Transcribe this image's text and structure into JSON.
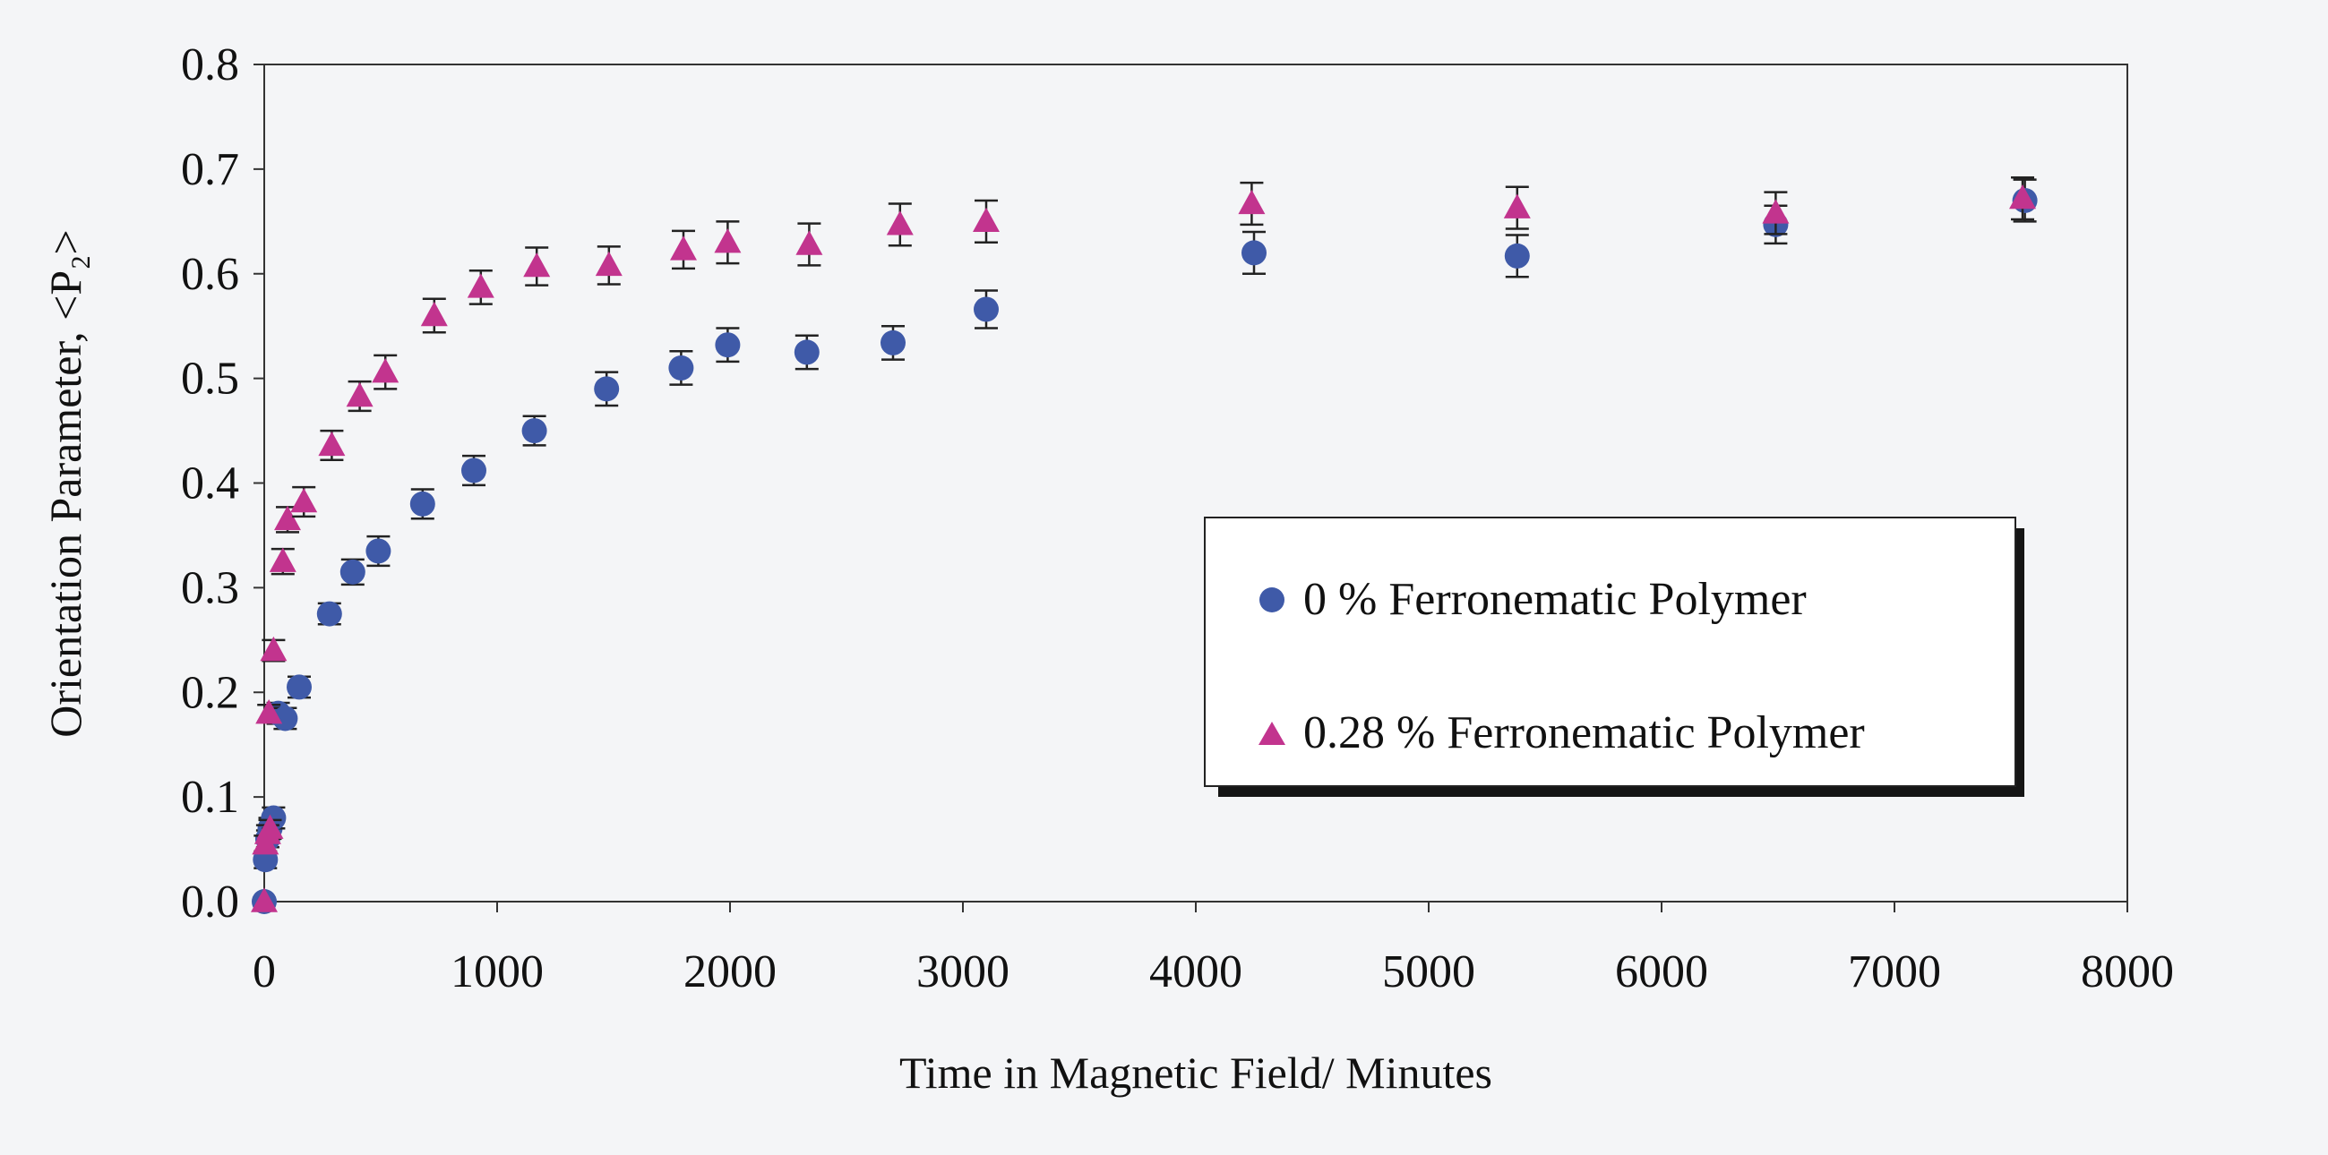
{
  "chart_data": {
    "type": "scatter",
    "title": "",
    "xlabel": "Time in Magnetic Field/ Minutes",
    "ylabel": "Orientation Parameter, <P₂>",
    "xlim": [
      0,
      8000
    ],
    "ylim": [
      0.0,
      0.8
    ],
    "x_ticks": [
      "0",
      "1000",
      "2000",
      "3000",
      "4000",
      "5000",
      "6000",
      "7000",
      "8000"
    ],
    "y_ticks": [
      "0.0",
      "0.1",
      "0.2",
      "0.3",
      "0.4",
      "0.5",
      "0.6",
      "0.7",
      "0.8"
    ],
    "grid": false,
    "error_bars": true,
    "legend_position": "right-center",
    "series": [
      {
        "name": "0 % Ferronematic Polymer",
        "marker": "circle",
        "color": "#3f5aa8",
        "points": [
          {
            "x": 0,
            "y": 0.0,
            "err": 0.0
          },
          {
            "x": 5,
            "y": 0.04,
            "err": 0.008
          },
          {
            "x": 15,
            "y": 0.06,
            "err": 0.008
          },
          {
            "x": 25,
            "y": 0.07,
            "err": 0.01
          },
          {
            "x": 40,
            "y": 0.08,
            "err": 0.01
          },
          {
            "x": 60,
            "y": 0.18,
            "err": 0.01
          },
          {
            "x": 90,
            "y": 0.175,
            "err": 0.01
          },
          {
            "x": 150,
            "y": 0.205,
            "err": 0.01
          },
          {
            "x": 280,
            "y": 0.275,
            "err": 0.01
          },
          {
            "x": 380,
            "y": 0.315,
            "err": 0.012
          },
          {
            "x": 490,
            "y": 0.335,
            "err": 0.014
          },
          {
            "x": 680,
            "y": 0.38,
            "err": 0.014
          },
          {
            "x": 900,
            "y": 0.412,
            "err": 0.014
          },
          {
            "x": 1160,
            "y": 0.45,
            "err": 0.014
          },
          {
            "x": 1470,
            "y": 0.49,
            "err": 0.016
          },
          {
            "x": 1790,
            "y": 0.51,
            "err": 0.016
          },
          {
            "x": 1990,
            "y": 0.532,
            "err": 0.016
          },
          {
            "x": 2330,
            "y": 0.525,
            "err": 0.016
          },
          {
            "x": 2700,
            "y": 0.534,
            "err": 0.016
          },
          {
            "x": 3100,
            "y": 0.566,
            "err": 0.018
          },
          {
            "x": 4250,
            "y": 0.62,
            "err": 0.02
          },
          {
            "x": 5380,
            "y": 0.617,
            "err": 0.02
          },
          {
            "x": 6490,
            "y": 0.647,
            "err": 0.018
          },
          {
            "x": 7560,
            "y": 0.67,
            "err": 0.02
          }
        ]
      },
      {
        "name": "0.28 % Ferronematic Polymer",
        "marker": "triangle",
        "color": "#c2348e",
        "points": [
          {
            "x": 0,
            "y": 0.0,
            "err": 0.0
          },
          {
            "x": 5,
            "y": 0.055,
            "err": 0.008
          },
          {
            "x": 15,
            "y": 0.065,
            "err": 0.008
          },
          {
            "x": 25,
            "y": 0.07,
            "err": 0.008
          },
          {
            "x": 20,
            "y": 0.18,
            "err": 0.008
          },
          {
            "x": 40,
            "y": 0.24,
            "err": 0.01
          },
          {
            "x": 80,
            "y": 0.325,
            "err": 0.012
          },
          {
            "x": 100,
            "y": 0.365,
            "err": 0.012
          },
          {
            "x": 170,
            "y": 0.382,
            "err": 0.014
          },
          {
            "x": 290,
            "y": 0.436,
            "err": 0.014
          },
          {
            "x": 410,
            "y": 0.483,
            "err": 0.014
          },
          {
            "x": 520,
            "y": 0.506,
            "err": 0.016
          },
          {
            "x": 730,
            "y": 0.56,
            "err": 0.016
          },
          {
            "x": 930,
            "y": 0.587,
            "err": 0.016
          },
          {
            "x": 1170,
            "y": 0.607,
            "err": 0.018
          },
          {
            "x": 1480,
            "y": 0.608,
            "err": 0.018
          },
          {
            "x": 1800,
            "y": 0.623,
            "err": 0.018
          },
          {
            "x": 1990,
            "y": 0.63,
            "err": 0.02
          },
          {
            "x": 2340,
            "y": 0.628,
            "err": 0.02
          },
          {
            "x": 2730,
            "y": 0.647,
            "err": 0.02
          },
          {
            "x": 3100,
            "y": 0.65,
            "err": 0.02
          },
          {
            "x": 4240,
            "y": 0.667,
            "err": 0.02
          },
          {
            "x": 5380,
            "y": 0.663,
            "err": 0.02
          },
          {
            "x": 6490,
            "y": 0.658,
            "err": 0.02
          },
          {
            "x": 7550,
            "y": 0.672,
            "err": 0.02
          }
        ]
      }
    ]
  }
}
